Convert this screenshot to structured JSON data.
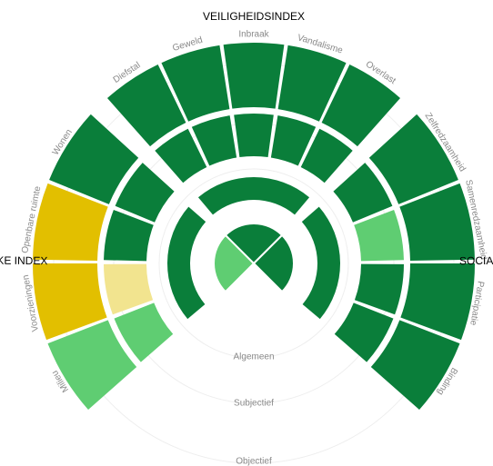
{
  "levels": [
    "Algemeen",
    "Subjectief",
    "Objectief"
  ],
  "sections": [
    {
      "title": "FYSIEKE INDEX",
      "pie": "#5fcd72",
      "algemeen": "#0a7e3a",
      "subjectief": [
        "#5fcd72",
        "#f2e48f",
        "#0a7e3a",
        "#0a7e3a"
      ],
      "objectief": [
        {
          "label": "Milieu",
          "color": "#5fcd72"
        },
        {
          "label": "Voorzieningen",
          "color": "#e2bf00"
        },
        {
          "label": "Openbare ruimte",
          "color": "#e2bf00"
        },
        {
          "label": "Wonen",
          "color": "#0a7e3a"
        }
      ]
    },
    {
      "title": "VEILIGHEIDSINDEX",
      "pie": "#0a7e3a",
      "algemeen": "#0a7e3a",
      "subjectief": [
        "#0a7e3a",
        "#0a7e3a",
        "#0a7e3a",
        "#0a7e3a",
        "#0a7e3a"
      ],
      "objectief": [
        {
          "label": "Diefstal",
          "color": "#0a7e3a"
        },
        {
          "label": "Geweld",
          "color": "#0a7e3a"
        },
        {
          "label": "Inbraak",
          "color": "#0a7e3a"
        },
        {
          "label": "Vandalisme",
          "color": "#0a7e3a"
        },
        {
          "label": "Overlast",
          "color": "#0a7e3a"
        }
      ]
    },
    {
      "title": "SOCIALE INDEX",
      "pie": "#0a7e3a",
      "algemeen": "#0a7e3a",
      "subjectief": [
        "#0a7e3a",
        "#5fcd72",
        "#0a7e3a",
        "#0a7e3a"
      ],
      "objectief": [
        {
          "label": "Zelfredzaamheid",
          "color": "#0a7e3a"
        },
        {
          "label": "Samenredzaamheid",
          "color": "#0a7e3a"
        },
        {
          "label": "Participatie",
          "color": "#0a7e3a"
        },
        {
          "label": "Binding",
          "color": "#0a7e3a"
        }
      ]
    }
  ]
}
